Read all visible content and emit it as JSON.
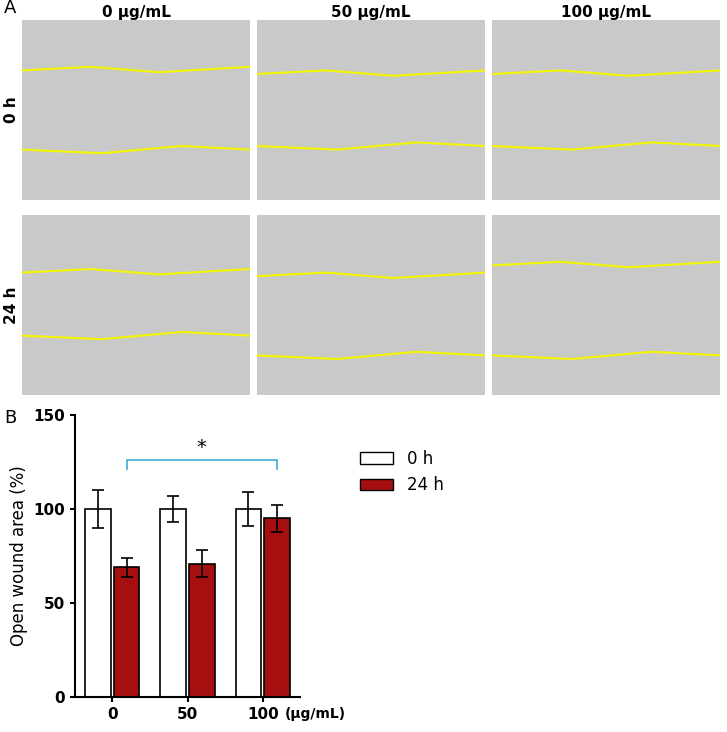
{
  "panel_labels": [
    "A",
    "B"
  ],
  "image_grid": {
    "columns": [
      "0 μg/mL",
      "50 μg/mL",
      "100 μg/mL"
    ],
    "rows": [
      "0 h",
      "24 h"
    ]
  },
  "chart_data": {
    "type": "bar",
    "categories": [
      "0",
      "50",
      "100"
    ],
    "x_label": "(μg/mL)",
    "y_label": "Open wound area (%)",
    "ylim": [
      0,
      150
    ],
    "yticks": [
      0,
      50,
      100,
      150
    ],
    "grid": false,
    "legend": "right",
    "series": [
      {
        "name": "0 h",
        "color": "#ffffff",
        "values": [
          100,
          100,
          100
        ],
        "errors": [
          10,
          7,
          9
        ]
      },
      {
        "name": "24 h",
        "color": "#a50f0f",
        "values": [
          69,
          71,
          95
        ],
        "errors": [
          5,
          7,
          7
        ]
      }
    ],
    "significance": [
      {
        "from": "0",
        "to": "100",
        "series": "24 h",
        "label": "*"
      }
    ]
  }
}
